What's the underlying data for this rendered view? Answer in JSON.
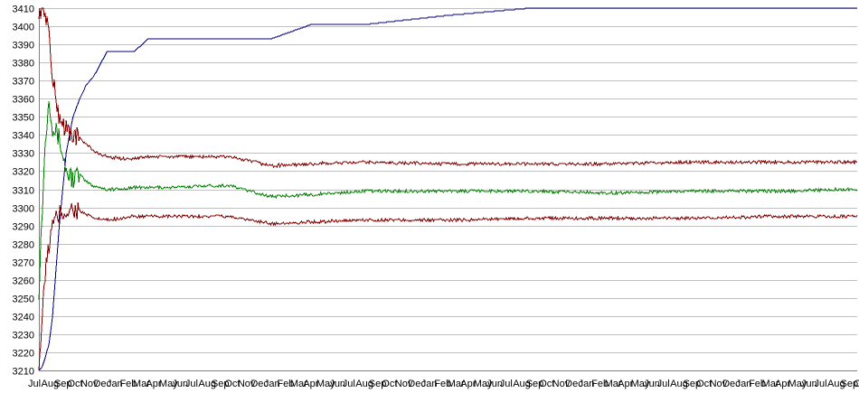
{
  "chart_data": {
    "type": "line",
    "title": "",
    "xlabel": "",
    "ylabel": "",
    "ylim": [
      3210,
      3410
    ],
    "yticks": [
      3210,
      3220,
      3230,
      3240,
      3250,
      3260,
      3270,
      3280,
      3290,
      3300,
      3310,
      3320,
      3330,
      3340,
      3350,
      3360,
      3370,
      3380,
      3390,
      3400,
      3410
    ],
    "grid": true,
    "legend": "none",
    "x_tick_labels": [
      "Jul",
      "Aug",
      "Sep",
      "Oct",
      "Nov",
      "Dec",
      "Jan",
      "Feb",
      "Mar",
      "Apr",
      "May",
      "Jun",
      "Jul",
      "Aug",
      "Sep",
      "Oct",
      "Nov",
      "Dec",
      "Jan",
      "Feb",
      "Mar",
      "Apr",
      "May",
      "Jun",
      "Jul",
      "Aug",
      "Sep",
      "Oct",
      "Nov",
      "Dec",
      "Jan",
      "Feb",
      "Mar",
      "Apr",
      "May",
      "Jun",
      "Jul",
      "Aug",
      "Sep",
      "Oct",
      "Nov",
      "Dec",
      "Jan",
      "Feb",
      "Mar",
      "Apr",
      "May",
      "Jun",
      "Jul",
      "Aug",
      "Sep",
      "Oct",
      "Nov",
      "Dec",
      "Jan",
      "Feb",
      "Mar",
      "Apr",
      "May",
      "Jun",
      "Jul",
      "Aug",
      "Sep",
      "Oct"
    ],
    "x": [
      0,
      0.25,
      0.5,
      0.75,
      1,
      1.5,
      2,
      2.5,
      3,
      3.5,
      4,
      5,
      6,
      7,
      8,
      10,
      12,
      14,
      17,
      20,
      24,
      30,
      36,
      42,
      48,
      54,
      60
    ],
    "series": [
      {
        "color": "#000080",
        "values": [
          3210,
          3212,
          3218,
          3225,
          3240,
          3290,
          3330,
          3350,
          3360,
          3368,
          3372,
          3386,
          3386,
          3386,
          3393,
          3393,
          3393,
          3393,
          3393,
          3401,
          3401,
          3406,
          3410,
          3410,
          3410,
          3410,
          3410
        ]
      },
      {
        "color": "#008000",
        "values": [
          3255,
          3300,
          3340,
          3362,
          3345,
          3338,
          3320,
          3316,
          3318,
          3314,
          3312,
          3310,
          3310,
          3311,
          3311,
          3311,
          3312,
          3312,
          3306,
          3307,
          3309,
          3309,
          3309,
          3308,
          3309,
          3309,
          3310
        ]
      },
      {
        "color": "#800000",
        "values": [
          3410,
          3410,
          3408,
          3395,
          3370,
          3350,
          3343,
          3340,
          3338,
          3335,
          3331,
          3328,
          3327,
          3327,
          3328,
          3328,
          3328,
          3328,
          3323,
          3324,
          3325,
          3324,
          3324,
          3324,
          3325,
          3325,
          3325
        ]
      },
      {
        "color": "#800000",
        "values": [
          3210,
          3240,
          3265,
          3280,
          3290,
          3296,
          3298,
          3299,
          3298,
          3296,
          3294,
          3293,
          3294,
          3295,
          3295,
          3295,
          3295,
          3295,
          3291,
          3292,
          3293,
          3293,
          3294,
          3294,
          3294,
          3295,
          3295
        ]
      }
    ]
  }
}
